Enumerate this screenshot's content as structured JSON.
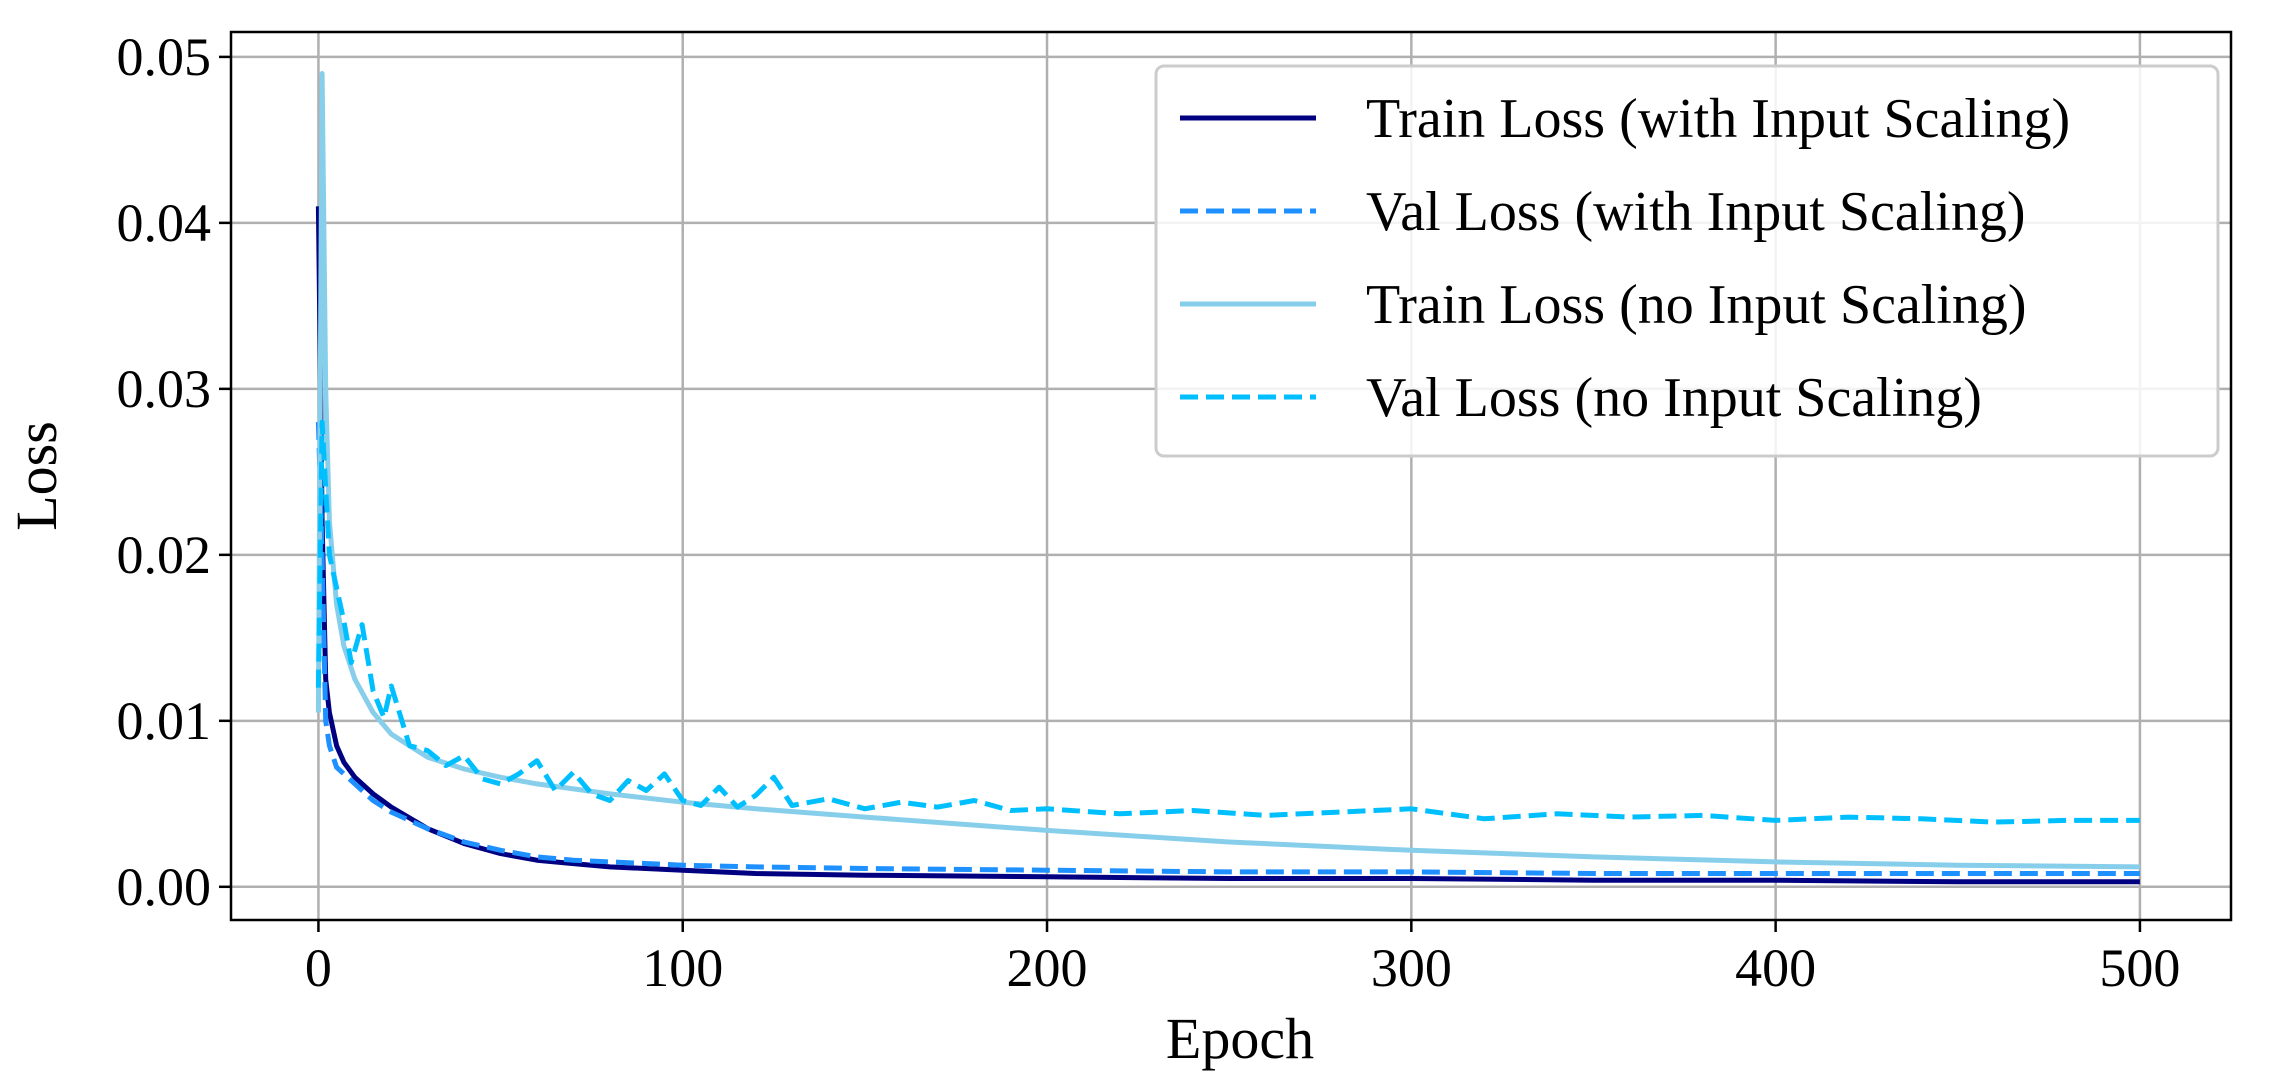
{
  "chart_data": {
    "type": "line",
    "title": "",
    "xlabel": "Epoch",
    "ylabel": "Loss",
    "xlim": [
      -24,
      525
    ],
    "ylim": [
      -0.002,
      0.0515
    ],
    "xticks": [
      0,
      100,
      200,
      300,
      400,
      500
    ],
    "xtick_labels": [
      "0",
      "100",
      "200",
      "300",
      "400",
      "500"
    ],
    "yticks": [
      0.0,
      0.01,
      0.02,
      0.03,
      0.04,
      0.05
    ],
    "ytick_labels": [
      "0.00",
      "0.01",
      "0.02",
      "0.03",
      "0.04",
      "0.05"
    ],
    "grid": true,
    "legend_position": "top-right",
    "series": [
      {
        "name": "Train Loss (with Input Scaling)",
        "color": "#000080",
        "dash": "solid",
        "x": [
          0,
          1,
          2,
          3,
          5,
          7,
          10,
          15,
          20,
          30,
          40,
          50,
          60,
          70,
          80,
          100,
          120,
          150,
          200,
          250,
          300,
          350,
          400,
          450,
          500
        ],
        "y": [
          0.041,
          0.022,
          0.0125,
          0.0105,
          0.0085,
          0.0075,
          0.0066,
          0.0056,
          0.0048,
          0.0035,
          0.0026,
          0.002,
          0.0016,
          0.0014,
          0.0012,
          0.001,
          0.0008,
          0.0007,
          0.0006,
          0.0005,
          0.0005,
          0.0004,
          0.0004,
          0.0003,
          0.0003
        ]
      },
      {
        "name": "Val Loss (with Input Scaling)",
        "color": "#1E90FF",
        "dash": "dashed",
        "x": [
          0,
          1,
          2,
          3,
          5,
          7,
          10,
          15,
          20,
          30,
          40,
          50,
          60,
          70,
          80,
          100,
          120,
          150,
          200,
          250,
          300,
          350,
          400,
          450,
          500
        ],
        "y": [
          0.028,
          0.02,
          0.01,
          0.0085,
          0.0072,
          0.0068,
          0.0062,
          0.0052,
          0.0045,
          0.0035,
          0.0027,
          0.0022,
          0.0018,
          0.0016,
          0.0015,
          0.0013,
          0.0012,
          0.0011,
          0.001,
          0.0009,
          0.0009,
          0.0008,
          0.0008,
          0.0008,
          0.0008
        ]
      },
      {
        "name": "Train Loss (no Input Scaling)",
        "color": "#87CEEB",
        "dash": "solid",
        "x": [
          0,
          1,
          2,
          3,
          5,
          7,
          10,
          15,
          20,
          30,
          40,
          50,
          60,
          80,
          100,
          120,
          150,
          200,
          250,
          300,
          350,
          400,
          450,
          500
        ],
        "y": [
          0.0105,
          0.049,
          0.03,
          0.022,
          0.017,
          0.0145,
          0.0125,
          0.0105,
          0.0092,
          0.0078,
          0.0071,
          0.0066,
          0.0062,
          0.0056,
          0.0051,
          0.0047,
          0.0042,
          0.0034,
          0.0027,
          0.0022,
          0.0018,
          0.0015,
          0.0013,
          0.0012
        ]
      },
      {
        "name": "Val Loss (no Input Scaling)",
        "color": "#00BFFF",
        "dash": "dashed",
        "x": [
          0,
          1,
          2,
          3,
          5,
          7,
          9,
          12,
          15,
          18,
          20,
          25,
          30,
          35,
          40,
          45,
          50,
          55,
          60,
          65,
          70,
          75,
          80,
          85,
          90,
          95,
          100,
          105,
          110,
          115,
          120,
          125,
          130,
          140,
          150,
          160,
          170,
          180,
          190,
          200,
          220,
          240,
          260,
          280,
          300,
          320,
          340,
          360,
          380,
          400,
          420,
          440,
          460,
          480,
          500
        ],
        "y": [
          0.012,
          0.028,
          0.024,
          0.02,
          0.018,
          0.016,
          0.0135,
          0.0158,
          0.0118,
          0.0102,
          0.0121,
          0.0085,
          0.0082,
          0.0073,
          0.0079,
          0.0065,
          0.0062,
          0.0068,
          0.0076,
          0.0058,
          0.0069,
          0.0056,
          0.0052,
          0.0064,
          0.0058,
          0.0068,
          0.0052,
          0.0049,
          0.006,
          0.0048,
          0.0055,
          0.0066,
          0.0049,
          0.0053,
          0.0047,
          0.0051,
          0.0048,
          0.0052,
          0.0046,
          0.0047,
          0.0044,
          0.0046,
          0.0043,
          0.0045,
          0.0047,
          0.0041,
          0.0044,
          0.0042,
          0.0043,
          0.004,
          0.0042,
          0.0041,
          0.0039,
          0.004,
          0.004
        ]
      }
    ]
  }
}
